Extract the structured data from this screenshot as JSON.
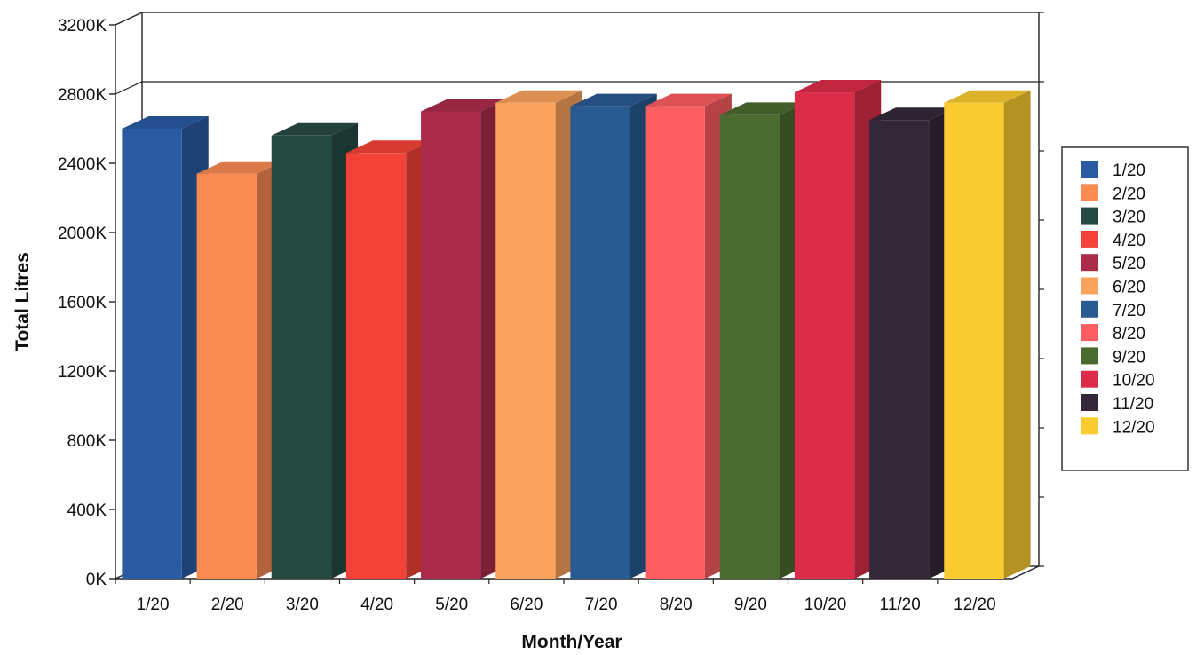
{
  "chart_data": {
    "type": "bar",
    "title": "",
    "xlabel": "Month/Year",
    "ylabel": "Total Litres",
    "ylim": [
      0,
      3200
    ],
    "yticks": [
      0,
      400,
      800,
      1200,
      1600,
      2000,
      2400,
      2800,
      3200
    ],
    "ytick_suffix": "K",
    "grid": false,
    "legend_position": "right",
    "categories": [
      "1/20",
      "2/20",
      "3/20",
      "4/20",
      "5/20",
      "6/20",
      "7/20",
      "8/20",
      "9/20",
      "10/20",
      "11/20",
      "12/20"
    ],
    "values": [
      2600,
      2340,
      2560,
      2460,
      2700,
      2750,
      2730,
      2730,
      2680,
      2810,
      2650,
      2750
    ],
    "colors": [
      "#2a5aa2",
      "#f98a52",
      "#264a42",
      "#f34237",
      "#ab2b4b",
      "#fba35c",
      "#2a5a92",
      "#fb5d61",
      "#4b6a2f",
      "#dc2c4a",
      "#332838",
      "#fbcb32"
    ],
    "legend": [
      "1/20",
      "2/20",
      "3/20",
      "4/20",
      "5/20",
      "6/20",
      "7/20",
      "8/20",
      "9/20",
      "10/20",
      "11/20",
      "12/20"
    ]
  }
}
